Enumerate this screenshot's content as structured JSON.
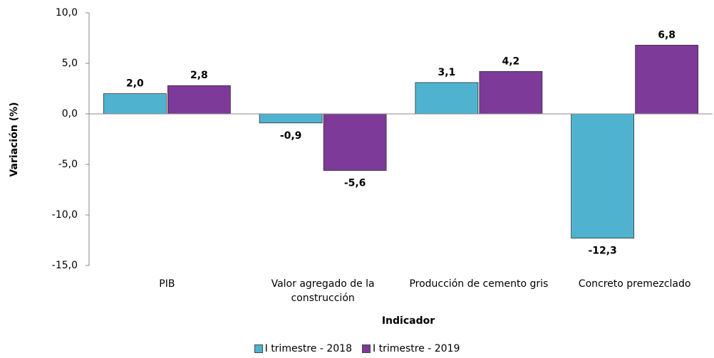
{
  "chart_data": {
    "type": "bar",
    "y_label": "Variación  (%)",
    "x_label": "Indicador",
    "categories": [
      "PIB",
      "Valor agregado de la construcción",
      "Producción de cemento gris",
      "Concreto premezclado"
    ],
    "series": [
      {
        "name": "I trimestre - 2018",
        "color": "#4fb3d0",
        "values": [
          2.0,
          -0.9,
          3.1,
          -12.3
        ],
        "value_labels": [
          "2,0",
          "-0,9",
          "3,1",
          "-12,3"
        ]
      },
      {
        "name": "I trimestre - 2019",
        "color": "#7d3a98",
        "values": [
          2.8,
          -5.6,
          4.2,
          6.8
        ],
        "value_labels": [
          "2,8",
          "-5,6",
          "4,2",
          "6,8"
        ]
      }
    ],
    "ylim": [
      -15,
      10
    ],
    "yticks": [
      {
        "value": -15,
        "label": "-15,0"
      },
      {
        "value": -10,
        "label": "-10,0"
      },
      {
        "value": -5,
        "label": "-5,0"
      },
      {
        "value": 0,
        "label": "0,0"
      },
      {
        "value": 5,
        "label": "5,0"
      },
      {
        "value": 10,
        "label": "10,0"
      }
    ]
  }
}
